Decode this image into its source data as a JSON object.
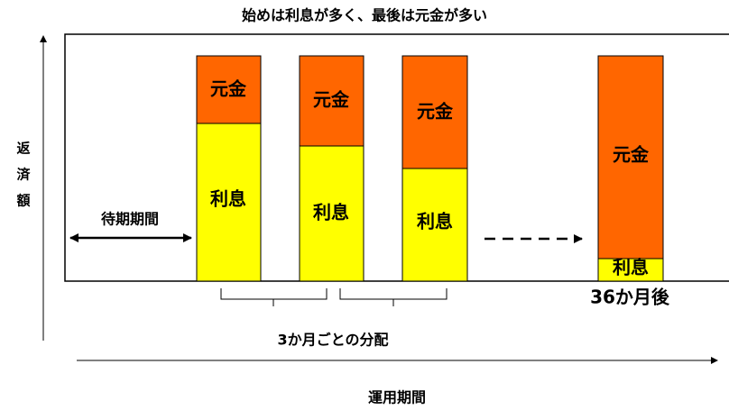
{
  "title": "始めは利息が多く、最後は元金が多い",
  "y_axis_label": "返済額",
  "x_axis_label": "運用期間",
  "waiting_period": "待期期間",
  "bars": [
    {
      "principal": "元金",
      "interest": "利息"
    },
    {
      "principal": "元金",
      "interest": "利息"
    },
    {
      "principal": "元金",
      "interest": "利息"
    },
    {
      "principal": "元金",
      "interest": "利息"
    }
  ],
  "distribution": "3か月ごとの分配",
  "after_36_months": "36か月後"
}
